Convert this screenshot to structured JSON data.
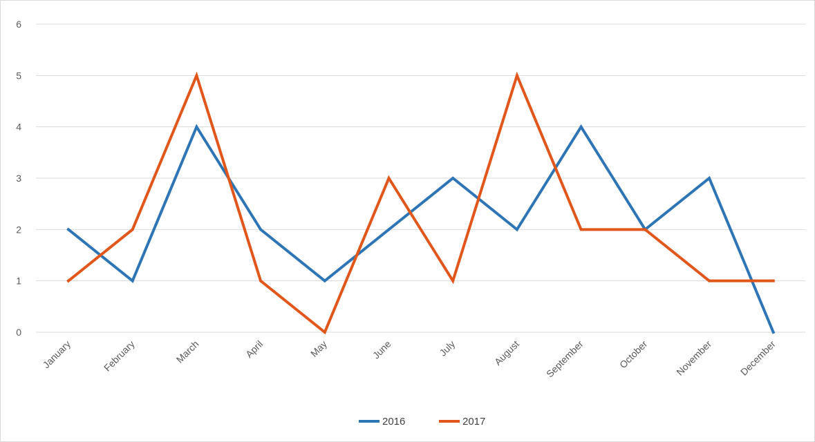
{
  "chart_data": {
    "type": "line",
    "categories": [
      "January",
      "February",
      "March",
      "April",
      "May",
      "June",
      "July",
      "August",
      "September",
      "October",
      "November",
      "December"
    ],
    "series": [
      {
        "name": "2016",
        "color": "#2e75b6",
        "values": [
          2,
          1,
          4,
          2,
          1,
          2,
          3,
          2,
          4,
          2,
          3,
          0
        ]
      },
      {
        "name": "2017",
        "color": "#e0561b",
        "values": [
          1,
          2,
          5,
          1,
          0,
          3,
          1,
          5,
          2,
          2,
          1,
          1
        ]
      }
    ],
    "y_ticks": [
      0,
      1,
      2,
      3,
      4,
      5,
      6
    ],
    "ylim": [
      0,
      6
    ],
    "grid": true,
    "legend_position": "bottom"
  }
}
